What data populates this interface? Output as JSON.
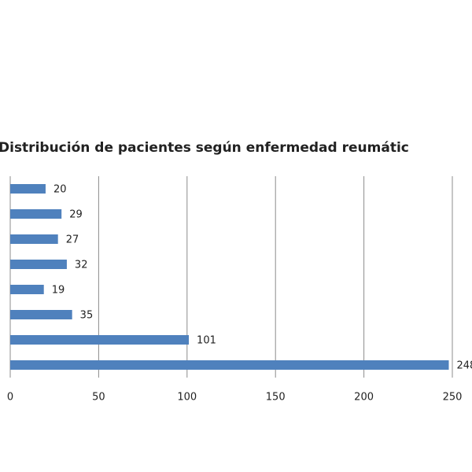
{
  "chart_data": {
    "type": "bar",
    "orientation": "horizontal",
    "title": "Distribución de pacientes según enfermedad reumátic",
    "categories": [
      null,
      null,
      null,
      null,
      null,
      null,
      null,
      null
    ],
    "values": [
      20,
      29,
      27,
      32,
      19,
      35,
      101,
      248
    ],
    "color": "#4f81bd",
    "xlim": [
      0,
      250
    ],
    "xticks": [
      0,
      50,
      100,
      150,
      200,
      250
    ],
    "grid": true
  }
}
